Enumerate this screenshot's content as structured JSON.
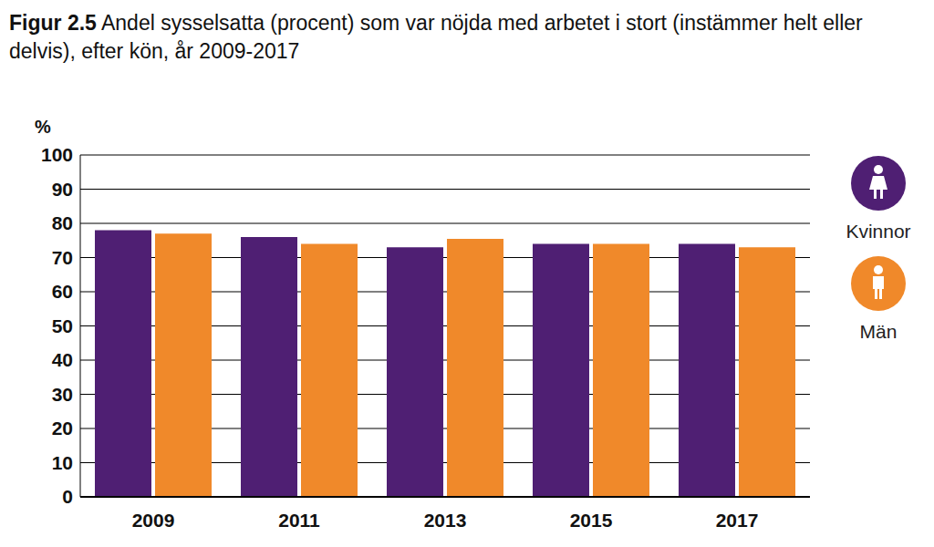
{
  "chart_data": {
    "type": "bar",
    "title": "Figur 2.5 Andel sysselsatta (procent) som var nöjda med arbetet i stort (instämmer helt eller delvis), efter kön, år 2009-2017",
    "y_label": "%",
    "categories": [
      "2009",
      "2011",
      "2013",
      "2015",
      "2017"
    ],
    "series": [
      {
        "name": "Kvinnor",
        "color": "#4f1f73",
        "values": [
          78,
          76,
          73,
          74,
          74
        ]
      },
      {
        "name": "Män",
        "color": "#f0892a",
        "values": [
          77,
          74,
          75.5,
          74,
          73
        ]
      }
    ],
    "ylim": [
      0,
      100
    ],
    "yticks": [
      0,
      10,
      20,
      30,
      40,
      50,
      60,
      70,
      80,
      90,
      100
    ],
    "grid": true,
    "legend": "right"
  }
}
